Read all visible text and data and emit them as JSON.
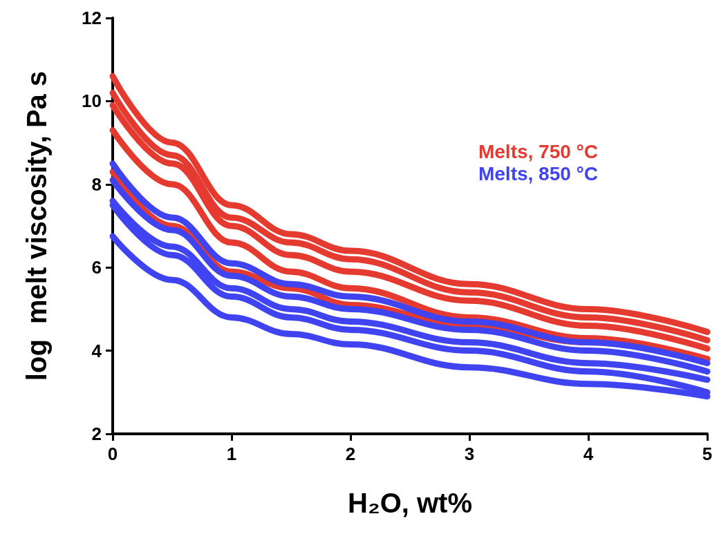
{
  "chart_data": {
    "type": "line",
    "xlabel": "H₂O, wt%",
    "ylabel": "log  melt viscosity, Pa s",
    "x": [
      0,
      0.5,
      1,
      1.5,
      2,
      3,
      4,
      5
    ],
    "series": [
      {
        "name": "Melts, 750 °C",
        "color": "#e53a2f",
        "values": [
          10.6,
          9.0,
          7.5,
          6.8,
          6.4,
          5.6,
          5.0,
          4.45
        ]
      },
      {
        "color": "#e53a2f",
        "values": [
          10.2,
          8.7,
          7.2,
          6.6,
          6.2,
          5.4,
          4.8,
          4.25
        ]
      },
      {
        "color": "#e53a2f",
        "values": [
          9.9,
          8.5,
          7.0,
          6.3,
          5.9,
          5.2,
          4.6,
          4.05
        ]
      },
      {
        "color": "#e53a2f",
        "values": [
          9.3,
          8.0,
          6.6,
          5.9,
          5.5,
          4.8,
          4.3,
          3.8
        ]
      },
      {
        "color": "#e53a2f",
        "values": [
          8.3,
          7.0,
          5.9,
          5.5,
          5.1,
          4.6,
          4.2,
          3.8
        ]
      },
      {
        "name": "Melts, 850 °C",
        "color": "#4043f0",
        "values": [
          8.5,
          7.2,
          6.1,
          5.6,
          5.3,
          4.7,
          4.2,
          3.7
        ]
      },
      {
        "color": "#4043f0",
        "values": [
          8.1,
          6.9,
          5.8,
          5.3,
          5.0,
          4.5,
          4.0,
          3.5
        ]
      },
      {
        "color": "#4043f0",
        "values": [
          7.6,
          6.5,
          5.5,
          5.0,
          4.7,
          4.2,
          3.7,
          3.3
        ]
      },
      {
        "color": "#4043f0",
        "values": [
          7.5,
          6.3,
          5.3,
          4.8,
          4.5,
          4.0,
          3.5,
          3.0
        ]
      },
      {
        "color": "#4043f0",
        "values": [
          6.75,
          5.7,
          4.8,
          4.4,
          4.15,
          3.6,
          3.2,
          2.9
        ]
      }
    ],
    "xlim": [
      0,
      5
    ],
    "xticks": [
      0,
      1,
      2,
      3,
      4,
      5
    ],
    "ylim": [
      2,
      12
    ],
    "yticks": [
      2,
      4,
      6,
      8,
      10,
      12
    ],
    "grid": false,
    "legend": "top right",
    "marker": "none",
    "line_style": "solid"
  }
}
